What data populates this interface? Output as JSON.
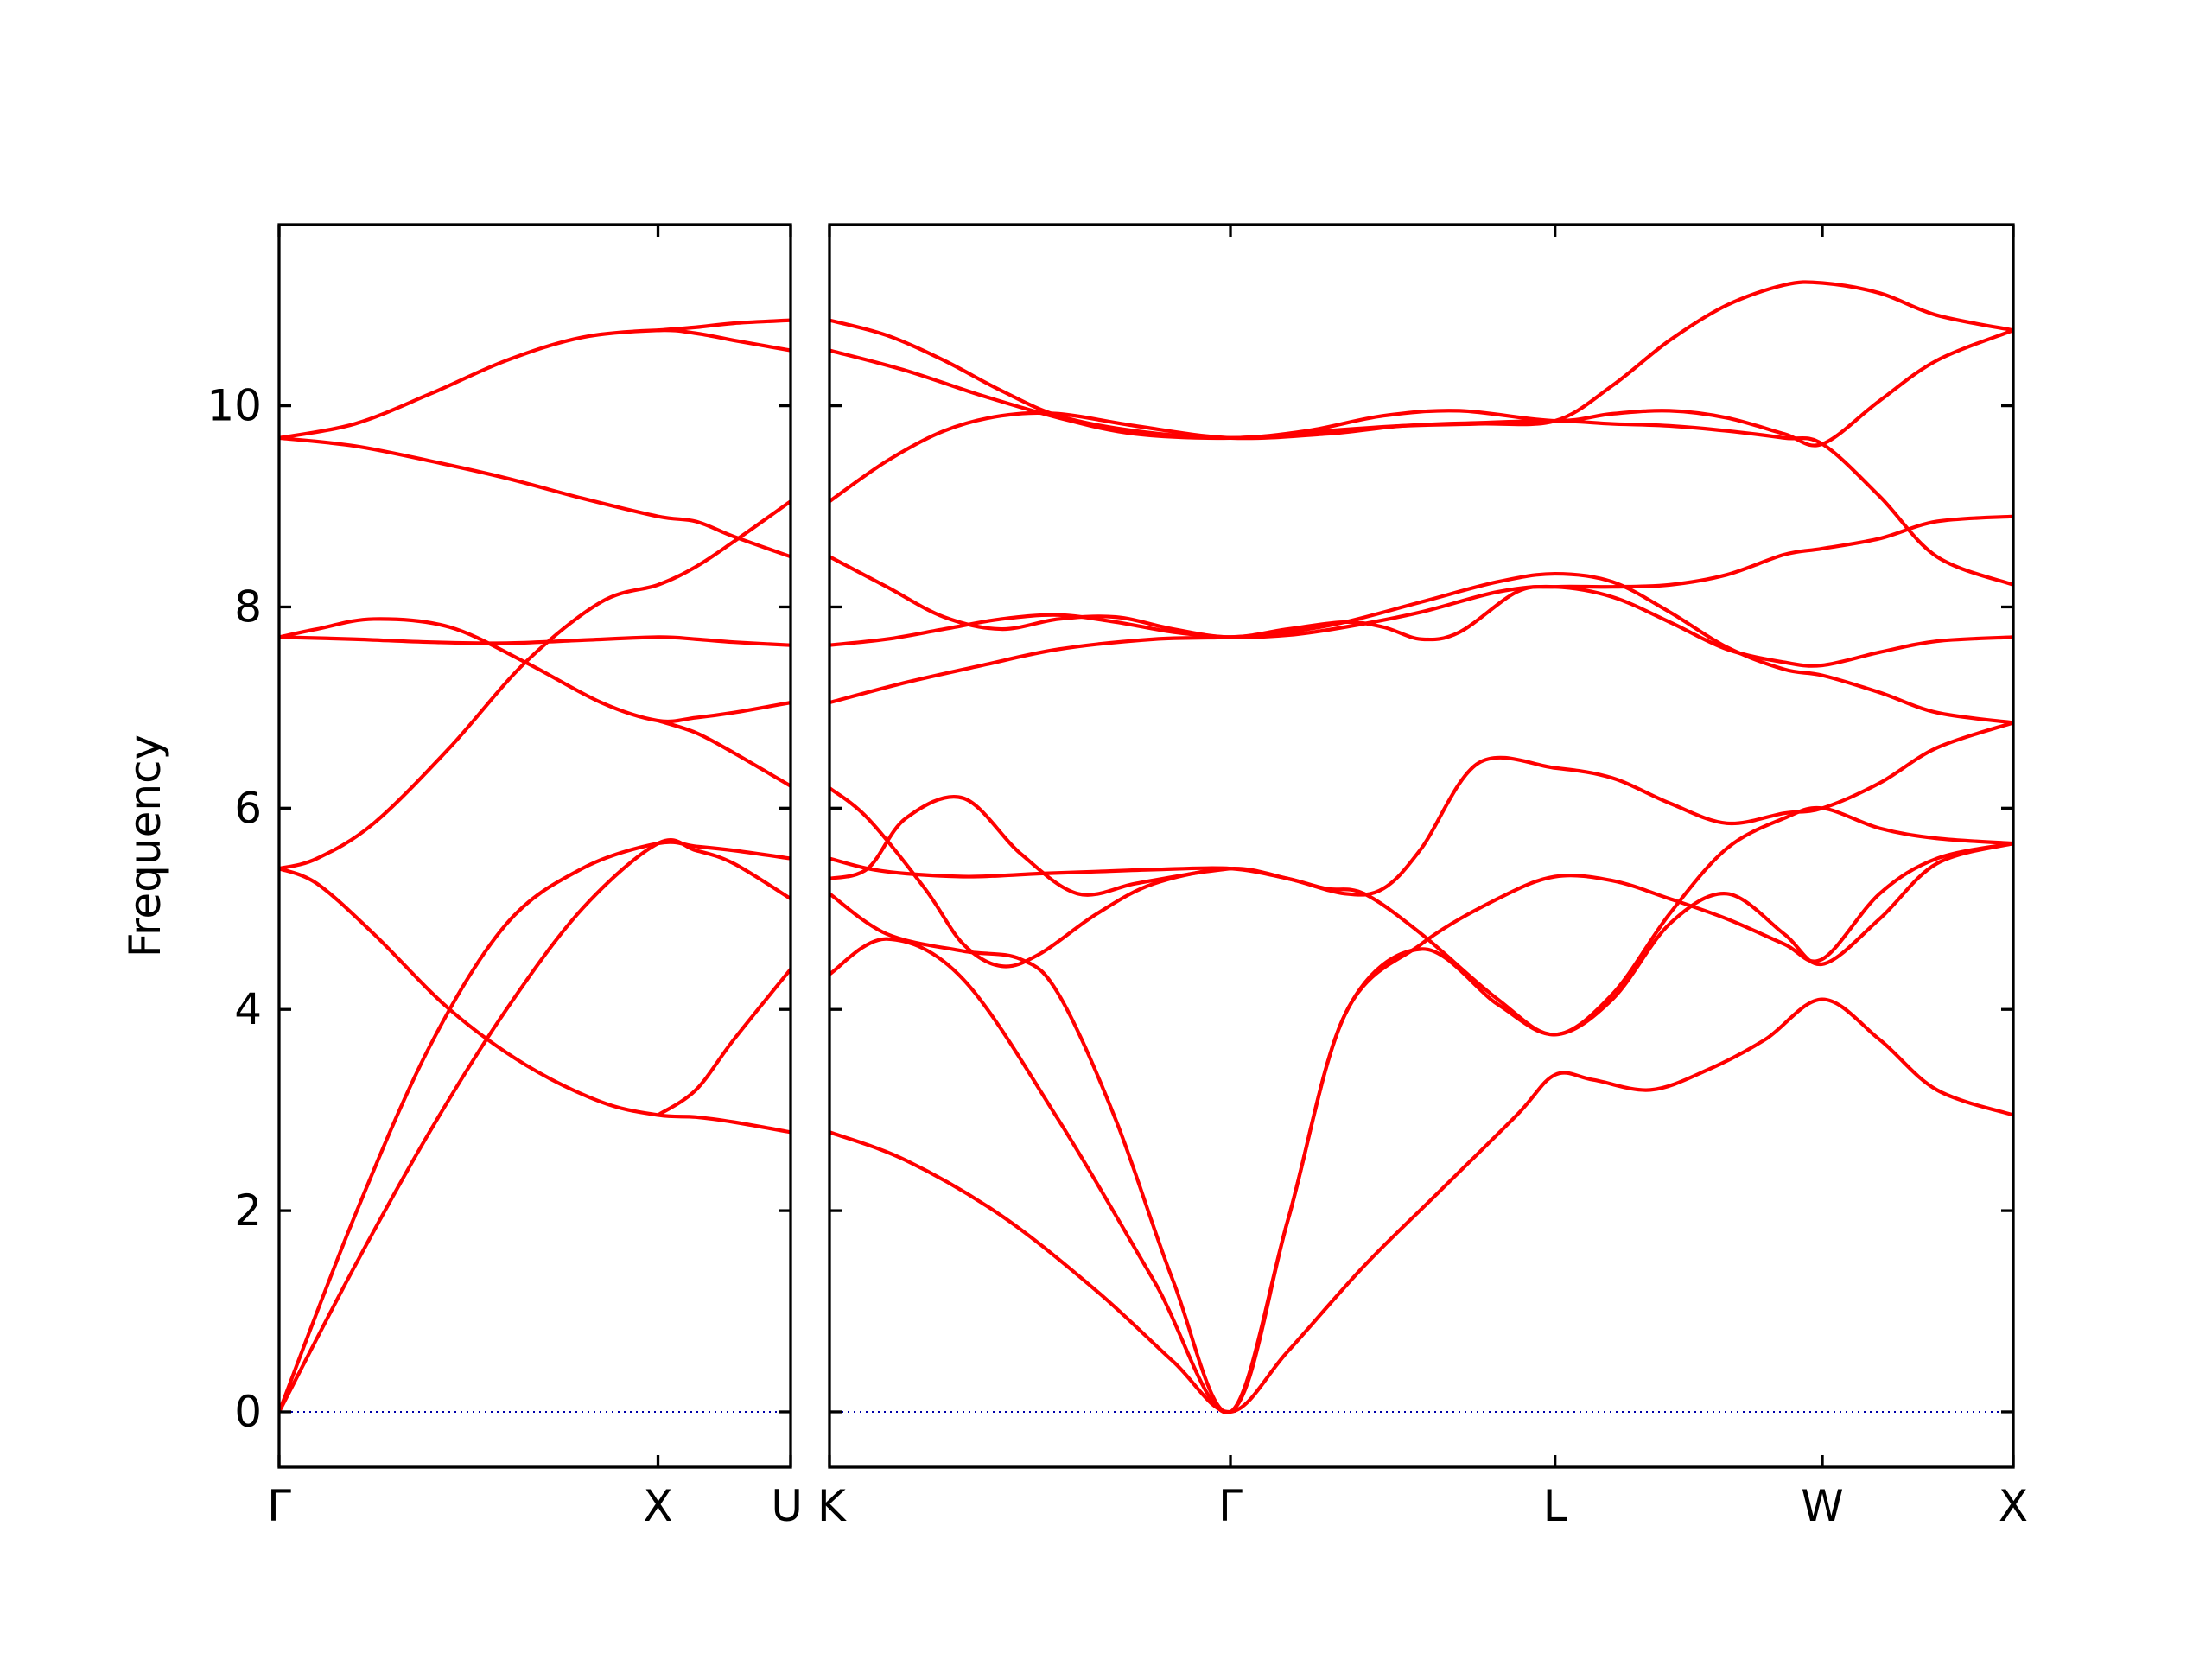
{
  "chart_data": {
    "type": "line",
    "title": "",
    "ylabel": "Frequency",
    "ylim": [
      -0.55,
      11.8
    ],
    "yticks": [
      0,
      2,
      4,
      6,
      8,
      10
    ],
    "line_color": "#ff0000",
    "zero_line_color": "#0000aa",
    "grid": false,
    "legend": "none",
    "segments": [
      {
        "name": "Γ-X-U",
        "xlim": [
          0,
          1.35
        ],
        "tick_positions": [
          0,
          1,
          1.35
        ],
        "tick_labels": [
          "Γ",
          "X",
          "U"
        ],
        "bands": [
          {
            "x": [
              0,
              0.2,
              0.4,
              0.6,
              0.8,
              1.0,
              1.1,
              1.2,
              1.35
            ],
            "y": [
              0,
              1.45,
              2.8,
              4.0,
              5.0,
              5.65,
              5.58,
              5.45,
              5.1
            ]
          },
          {
            "x": [
              0,
              0.2,
              0.4,
              0.6,
              0.8,
              1.0,
              1.1,
              1.2,
              1.35
            ],
            "y": [
              0,
              1.95,
              3.65,
              4.85,
              5.4,
              5.65,
              5.62,
              5.58,
              5.5
            ]
          },
          {
            "x": [
              0,
              0.1,
              0.25,
              0.45,
              0.65,
              0.85,
              1.0,
              1.1,
              1.2,
              1.35
            ],
            "y": [
              5.4,
              5.25,
              4.75,
              4.0,
              3.45,
              3.08,
              2.95,
              2.93,
              2.88,
              2.78
            ]
          },
          {
            "x": [
              0,
              0.1,
              0.25,
              0.45,
              0.65,
              0.85,
              1.0,
              1.1,
              1.2,
              1.35
            ],
            "y": [
              5.4,
              5.5,
              5.85,
              6.6,
              7.45,
              8.05,
              8.22,
              8.4,
              8.65,
              9.05
            ]
          },
          {
            "x": [
              0,
              0.2,
              0.4,
              0.6,
              0.8,
              1.0,
              1.1,
              1.2,
              1.35
            ],
            "y": [
              7.7,
              7.68,
              7.65,
              7.64,
              7.67,
              7.7,
              7.68,
              7.65,
              7.62
            ]
          },
          {
            "x": [
              0,
              0.1,
              0.25,
              0.45,
              0.65,
              0.85,
              1.0,
              1.1,
              1.2,
              1.35
            ],
            "y": [
              7.7,
              7.78,
              7.88,
              7.8,
              7.45,
              7.05,
              6.87,
              6.9,
              6.95,
              7.05
            ]
          },
          {
            "x": [
              0,
              0.2,
              0.4,
              0.6,
              0.8,
              1.0,
              1.1,
              1.2,
              1.35
            ],
            "y": [
              9.68,
              9.6,
              9.45,
              9.28,
              9.08,
              8.9,
              8.85,
              8.7,
              8.5
            ]
          },
          {
            "x": [
              0,
              0.2,
              0.4,
              0.6,
              0.8,
              1.0,
              1.1,
              1.2,
              1.35
            ],
            "y": [
              9.68,
              9.82,
              10.12,
              10.45,
              10.68,
              10.75,
              10.72,
              10.65,
              10.55
            ]
          },
          {
            "x": [
              1.0,
              1.1,
              1.2,
              1.35
            ],
            "y": [
              10.75,
              10.78,
              10.82,
              10.85
            ]
          },
          {
            "x": [
              1.0,
              1.1,
              1.2,
              1.35
            ],
            "y": [
              6.87,
              6.75,
              6.55,
              6.22
            ]
          },
          {
            "x": [
              1.0,
              1.1,
              1.2,
              1.35
            ],
            "y": [
              2.95,
              3.2,
              3.7,
              4.4
            ]
          }
        ]
      },
      {
        "name": "K-Γ-L-W-X",
        "xlim": [
          0,
          3.1
        ],
        "tick_positions": [
          0,
          1.05,
          1.9,
          2.6,
          3.1
        ],
        "tick_labels": [
          "K",
          "Γ",
          "L",
          "W",
          "X"
        ],
        "bands": [
          {
            "x": [
              0,
              0.2,
              0.45,
              0.7,
              0.9,
              1.05,
              1.2,
              1.4,
              1.6,
              1.8,
              1.9,
              2.0,
              2.15,
              2.3,
              2.45,
              2.6,
              2.75,
              2.9,
              3.1
            ],
            "y": [
              2.78,
              2.5,
              1.95,
              1.2,
              0.5,
              0,
              0.6,
              1.45,
              2.2,
              2.95,
              3.35,
              3.3,
              3.2,
              3.4,
              3.7,
              4.1,
              3.7,
              3.2,
              2.95
            ]
          },
          {
            "x": [
              0,
              0.15,
              0.35,
              0.6,
              0.85,
              1.05,
              1.2,
              1.35,
              1.55,
              1.75,
              1.9,
              2.05,
              2.2,
              2.35,
              2.5,
              2.6,
              2.75,
              2.9,
              3.1
            ],
            "y": [
              4.35,
              4.7,
              4.3,
              2.9,
              1.3,
              0,
              1.9,
              3.95,
              4.65,
              5.1,
              5.32,
              5.28,
              5.1,
              4.9,
              4.65,
              4.5,
              5.15,
              5.5,
              5.65
            ]
          },
          {
            "x": [
              0,
              0.15,
              0.35,
              0.5,
              0.6,
              0.75,
              0.9,
              1.05,
              1.2,
              1.35,
              1.55,
              1.75,
              1.9,
              2.05,
              2.2,
              2.35,
              2.5,
              2.6,
              2.75,
              2.9,
              3.1
            ],
            "y": [
              5.15,
              4.75,
              4.58,
              4.5,
              4.15,
              2.9,
              1.3,
              0,
              1.9,
              3.95,
              4.6,
              4.05,
              3.75,
              4.1,
              4.85,
              5.15,
              4.75,
              4.45,
              4.9,
              5.45,
              5.65
            ]
          },
          {
            "x": [
              0,
              0.1,
              0.2,
              0.35,
              0.45,
              0.55,
              0.7,
              0.85,
              1.05,
              1.2,
              1.3,
              1.4,
              1.55,
              1.75,
              1.9,
              2.05,
              2.2,
              2.35,
              2.5,
              2.6,
              2.75,
              2.9,
              3.1
            ],
            "y": [
              5.5,
              5.4,
              5.35,
              5.32,
              5.33,
              5.35,
              5.37,
              5.39,
              5.4,
              5.3,
              5.2,
              5.15,
              4.75,
              4.1,
              3.75,
              4.15,
              4.95,
              5.6,
              5.9,
              6.0,
              5.8,
              5.7,
              5.65
            ]
          },
          {
            "x": [
              0,
              0.1,
              0.25,
              0.35,
              0.45,
              0.55,
              0.7,
              0.85,
              1.05,
              1.2,
              1.35,
              1.45,
              1.55,
              1.7,
              1.9,
              2.05,
              2.2,
              2.35,
              2.5,
              2.6,
              2.75,
              2.9,
              3.1
            ],
            "y": [
              6.2,
              5.9,
              5.2,
              4.65,
              4.43,
              4.55,
              4.95,
              5.25,
              5.4,
              5.3,
              5.15,
              5.2,
              5.6,
              6.45,
              6.4,
              6.3,
              6.05,
              5.85,
              5.95,
              6.0,
              6.25,
              6.6,
              6.85
            ]
          },
          {
            "x": [
              0,
              0.1,
              0.2,
              0.35,
              0.5,
              0.65,
              0.8,
              0.95,
              1.05
            ],
            "y": [
              5.3,
              5.4,
              5.9,
              6.1,
              5.55,
              5.15,
              5.25,
              5.35,
              5.4
            ]
          },
          {
            "x": [
              0,
              0.2,
              0.4,
              0.6,
              0.85,
              1.05,
              1.2,
              1.35,
              1.55,
              1.75,
              1.9,
              2.05,
              2.2,
              2.35,
              2.5,
              2.6,
              2.75,
              2.9,
              3.1
            ],
            "y": [
              7.05,
              7.25,
              7.42,
              7.58,
              7.68,
              7.7,
              7.75,
              7.85,
              8.05,
              8.25,
              8.33,
              8.25,
              7.95,
              7.6,
              7.38,
              7.32,
              7.15,
              6.95,
              6.85
            ]
          },
          {
            "x": [
              0,
              0.15,
              0.3,
              0.45,
              0.6,
              0.75,
              0.9,
              1.05,
              1.2,
              1.35,
              1.45,
              1.55,
              1.65,
              1.8,
              1.9,
              2.05,
              2.2,
              2.35,
              2.5,
              2.6,
              2.75,
              2.9,
              3.1
            ],
            "y": [
              8.5,
              8.2,
              7.9,
              7.78,
              7.88,
              7.9,
              7.78,
              7.7,
              7.78,
              7.85,
              7.8,
              7.68,
              7.75,
              8.15,
              8.2,
              8.2,
              8.22,
              8.32,
              8.52,
              8.58,
              8.68,
              8.85,
              8.9
            ]
          },
          {
            "x": [
              0,
              0.15,
              0.3,
              0.45,
              0.6,
              0.75,
              0.9,
              1.05,
              1.2,
              1.35,
              1.55,
              1.75,
              1.9,
              2.05,
              2.2,
              2.35,
              2.5,
              2.6,
              2.75,
              2.9,
              3.1
            ],
            "y": [
              7.62,
              7.68,
              7.78,
              7.88,
              7.92,
              7.85,
              7.75,
              7.7,
              7.72,
              7.8,
              7.95,
              8.15,
              8.2,
              8.1,
              7.85,
              7.58,
              7.45,
              7.42,
              7.55,
              7.66,
              7.7
            ]
          },
          {
            "x": [
              0,
              0.15,
              0.3,
              0.45,
              0.6,
              0.8,
              1.05,
              1.3,
              1.5,
              1.7,
              1.9,
              2.05,
              2.2,
              2.35,
              2.5,
              2.6,
              2.75,
              2.9,
              3.1
            ],
            "y": [
              9.05,
              9.45,
              9.75,
              9.9,
              9.92,
              9.8,
              9.68,
              9.72,
              9.8,
              9.83,
              9.85,
              9.82,
              9.8,
              9.75,
              9.68,
              9.62,
              9.1,
              8.5,
              8.22
            ]
          },
          {
            "x": [
              0,
              0.2,
              0.4,
              0.6,
              0.8,
              1.05,
              1.25,
              1.45,
              1.65,
              1.9,
              2.05,
              2.2,
              2.35,
              2.5,
              2.6,
              2.75,
              2.9,
              3.1
            ],
            "y": [
              10.55,
              10.35,
              10.1,
              9.88,
              9.72,
              9.68,
              9.75,
              9.9,
              9.95,
              9.85,
              9.92,
              9.95,
              9.88,
              9.72,
              9.62,
              10.05,
              10.45,
              10.75
            ]
          },
          {
            "x": [
              0,
              0.15,
              0.3,
              0.45,
              0.6,
              0.8,
              1.05,
              1.3,
              1.5,
              1.7,
              1.9,
              2.05,
              2.2,
              2.35,
              2.5,
              2.6,
              2.75,
              2.9,
              3.1
            ],
            "y": [
              10.85,
              10.7,
              10.45,
              10.15,
              9.9,
              9.75,
              9.68,
              9.75,
              9.8,
              9.82,
              9.85,
              10.2,
              10.65,
              11.0,
              11.2,
              11.22,
              11.12,
              10.9,
              10.75
            ]
          }
        ]
      }
    ]
  }
}
